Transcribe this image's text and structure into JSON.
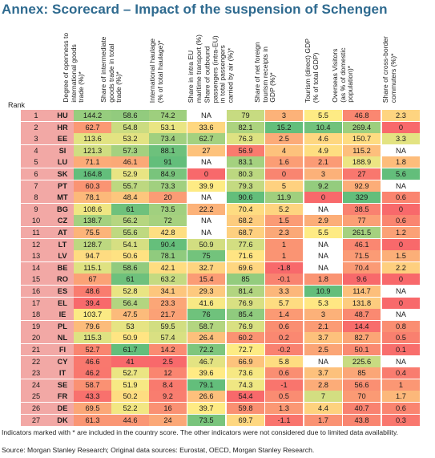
{
  "title": "Annex: Scorecard – Impact of the suspension of Schengen",
  "rank_label": "Rank",
  "footnote": "Indicators marked with * are included in the country score. The other indicators were not considered due to limited data availability.",
  "source": "Source: Morgan Stanley Research; Original data sources: Eurostat, OECD, Morgan Stanley Research.",
  "colors": {
    "green": "#63be7b",
    "yellow": "#ffeb84",
    "red": "#f8696b",
    "rank_bg": "#f2a8a5",
    "na": "#ffffff"
  },
  "chart_data": {
    "type": "table",
    "columns": [
      "Degree of openness to international goods trade (%)*",
      "Share of intermediate goods trade in total trade (%)*",
      "International haulage (% of total haulage)*",
      "Share in intra EU maritime transport (%)",
      "Share of outbound passengers (intra-EU) in total passengers carried by air (%)*",
      "Share of net foreign tourism receipts in GDP (%)*",
      "Tourism (direct) GDP (% of total GDP)",
      "Overseas Visitors (as % of domestic population)*",
      "Share of cross-border commuters (%)*"
    ],
    "header_lines": [
      [
        "Degree of openness to",
        "international goods",
        "trade (%)*"
      ],
      [
        "Share of intermediate",
        "goods trade in total",
        "trade (%)*"
      ],
      [
        "International haulage",
        "(% of total haulage)*"
      ],
      [
        "Share in intra EU",
        "maritime transport (%)"
      ],
      [
        "Share of outbound",
        "passengers (intra-EU)",
        "in total passengers",
        "carried by air (%)*"
      ],
      [
        "Share of net foreign",
        "tourism receipts in",
        "GDP (%)*"
      ],
      [
        "Tourism (direct) GDP",
        "(% of total GDP)"
      ],
      [
        "Overseas Visitors",
        "(as % of domestic",
        "population)*"
      ],
      [
        "Share of cross-border",
        "commuters (%)*"
      ]
    ],
    "rows": [
      {
        "rank": "1",
        "country": "HU",
        "values": [
          "144.2",
          "58.6",
          "74.2",
          "NA",
          "79",
          "3",
          "5.5",
          "46.8",
          "2.3"
        ]
      },
      {
        "rank": "2",
        "country": "HR",
        "values": [
          "62.7",
          "54.8",
          "53.1",
          "33.6",
          "82.1",
          "15.2",
          "10.4",
          "269.4",
          "0"
        ]
      },
      {
        "rank": "3",
        "country": "EE",
        "values": [
          "113.6",
          "53.2",
          "73.4",
          "62.7",
          "76.3",
          "2.5",
          "4.6",
          "150.7",
          "3.3"
        ]
      },
      {
        "rank": "4",
        "country": "SI",
        "values": [
          "121.3",
          "57.3",
          "88.1",
          "27",
          "56.9",
          "4",
          "4.9",
          "115.2",
          "NA"
        ]
      },
      {
        "rank": "5",
        "country": "LU",
        "values": [
          "71.1",
          "46.1",
          "91",
          "NA",
          "83.1",
          "1.6",
          "2.1",
          "188.9",
          "1.8"
        ]
      },
      {
        "rank": "6",
        "country": "SK",
        "values": [
          "164.8",
          "52.9",
          "84.9",
          "0",
          "80.3",
          "0",
          "3",
          "27",
          "5.6"
        ]
      },
      {
        "rank": "7",
        "country": "PT",
        "values": [
          "60.3",
          "55.7",
          "73.3",
          "39.9",
          "79.3",
          "5",
          "9.2",
          "92.9",
          "NA"
        ]
      },
      {
        "rank": "8",
        "country": "MT",
        "values": [
          "78.1",
          "48.4",
          "20",
          "NA",
          "90.6",
          "11.9",
          "0",
          "329",
          "0.6"
        ]
      },
      {
        "rank": "9",
        "country": "BG",
        "values": [
          "108.6",
          "61",
          "73.5",
          "22.2",
          "70.4",
          "5.2",
          "NA",
          "38.5",
          "0"
        ]
      },
      {
        "rank": "10",
        "country": "CZ",
        "values": [
          "138.7",
          "56.2",
          "72",
          "NA",
          "68.2",
          "1.5",
          "2.9",
          "77",
          "0.6"
        ]
      },
      {
        "rank": "11",
        "country": "AT",
        "values": [
          "75.5",
          "55.6",
          "42.8",
          "NA",
          "68.7",
          "2.3",
          "5.5",
          "261.5",
          "1.2"
        ]
      },
      {
        "rank": "12",
        "country": "LT",
        "values": [
          "128.7",
          "54.1",
          "90.4",
          "50.9",
          "77.6",
          "1",
          "NA",
          "46.1",
          "0"
        ]
      },
      {
        "rank": "13",
        "country": "LV",
        "values": [
          "94.7",
          "50.6",
          "78.1",
          "75",
          "71.6",
          "1",
          "NA",
          "71.5",
          "1.5"
        ]
      },
      {
        "rank": "14",
        "country": "BE",
        "values": [
          "115.1",
          "58.6",
          "42.1",
          "32.7",
          "69.6",
          "-1.8",
          "NA",
          "70.4",
          "2.2"
        ]
      },
      {
        "rank": "15",
        "country": "RO",
        "values": [
          "67",
          "61",
          "63.2",
          "15.4",
          "85",
          "-0.1",
          "1.8",
          "9.6",
          "0"
        ]
      },
      {
        "rank": "16",
        "country": "ES",
        "values": [
          "48.6",
          "52.8",
          "34.1",
          "29.3",
          "81.4",
          "3.3",
          "10.9",
          "114.7",
          "NA"
        ]
      },
      {
        "rank": "17",
        "country": "EL",
        "values": [
          "39.4",
          "56.4",
          "23.3",
          "41.6",
          "76.9",
          "5.7",
          "5.3",
          "131.8",
          "0"
        ]
      },
      {
        "rank": "18",
        "country": "IE",
        "values": [
          "103.7",
          "47.5",
          "21.7",
          "76",
          "85.4",
          "1.4",
          "3",
          "48.7",
          "NA"
        ]
      },
      {
        "rank": "19",
        "country": "PL",
        "values": [
          "79.6",
          "53",
          "59.5",
          "58.7",
          "76.9",
          "0.6",
          "2.1",
          "14.4",
          "0.8"
        ]
      },
      {
        "rank": "20",
        "country": "NL",
        "values": [
          "115.3",
          "50.9",
          "57.4",
          "26.4",
          "60.2",
          "0.2",
          "3.7",
          "82.7",
          "0.5"
        ]
      },
      {
        "rank": "21",
        "country": "FI",
        "values": [
          "52.7",
          "61.7",
          "14.2",
          "72.2",
          "72.7",
          "-0.2",
          "2.5",
          "50.1",
          "0.1"
        ]
      },
      {
        "rank": "22",
        "country": "CY",
        "values": [
          "46.6",
          "41",
          "2.5",
          "46.7",
          "66.9",
          "5.8",
          "NA",
          "225.6",
          "NA"
        ]
      },
      {
        "rank": "23",
        "country": "IT",
        "values": [
          "46.2",
          "52.7",
          "12",
          "39.6",
          "73.6",
          "0.6",
          "3.7",
          "85",
          "0.4"
        ]
      },
      {
        "rank": "24",
        "country": "SE",
        "values": [
          "58.7",
          "51.9",
          "8.4",
          "79.1",
          "74.3",
          "-1",
          "2.8",
          "56.6",
          "1"
        ]
      },
      {
        "rank": "25",
        "country": "FR",
        "values": [
          "43.3",
          "50.2",
          "9.2",
          "26.6",
          "54.4",
          "0.5",
          "7",
          "70",
          "1.7"
        ]
      },
      {
        "rank": "26",
        "country": "DE",
        "values": [
          "69.5",
          "52.2",
          "16",
          "39.7",
          "59.8",
          "1.3",
          "4.4",
          "40.7",
          "0.6"
        ]
      },
      {
        "rank": "27",
        "country": "DK",
        "values": [
          "61.3",
          "44.6",
          "24",
          "73.5",
          "69.7",
          "-1.1",
          "1.7",
          "43.8",
          "0.3"
        ]
      }
    ]
  }
}
